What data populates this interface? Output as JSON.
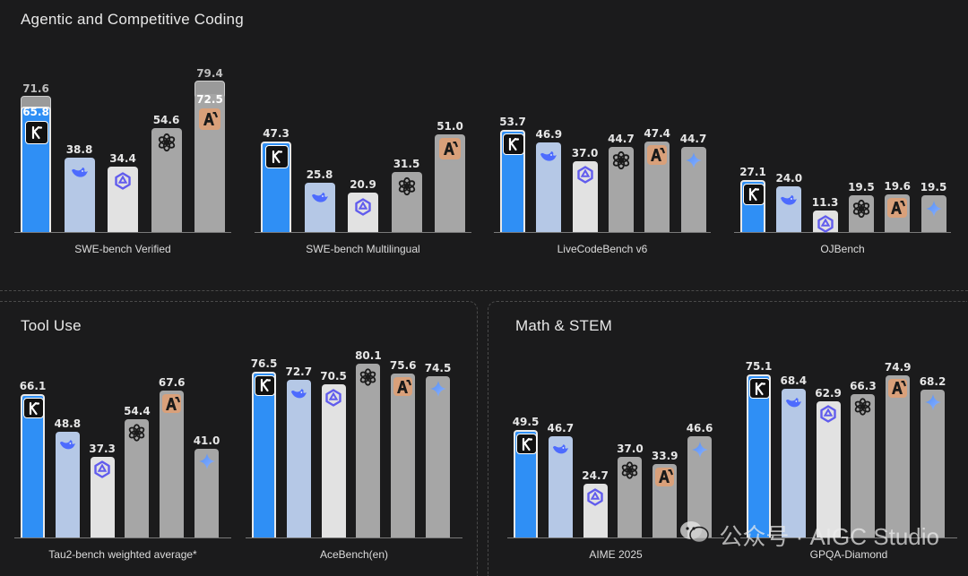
{
  "sections": {
    "coding": "Agentic and Competitive Coding",
    "tool": "Tool Use",
    "math": "Math & STEM"
  },
  "colors": {
    "kimi": "#2f8ff5",
    "deepseek": "#b5c8e6",
    "qwen": "#e2e2e2",
    "openai": "#a6a6a6",
    "claude": "#a6a6a6",
    "gemini": "#a6a6a6",
    "claude_badge": "#d9a07a",
    "extended": "#9a9a9a"
  },
  "watermark": {
    "text": "公众号 · AIGC Studio"
  },
  "chart_data": [
    {
      "type": "bar",
      "section": "coding",
      "title": "SWE-bench Verified",
      "ylim": [
        0,
        80
      ],
      "models": [
        "kimi",
        "deepseek",
        "qwen",
        "openai",
        "claude"
      ],
      "values": [
        65.8,
        38.8,
        34.4,
        54.6,
        72.5
      ],
      "labels": [
        "65.8",
        "38.8",
        "34.4",
        "54.6",
        "72.5"
      ],
      "extended": [
        71.6,
        null,
        null,
        null,
        79.4
      ],
      "extended_labels": [
        "71.6",
        null,
        null,
        null,
        "79.4"
      ]
    },
    {
      "type": "bar",
      "section": "coding",
      "title": "SWE-bench Multilingual",
      "ylim": [
        0,
        80
      ],
      "models": [
        "kimi",
        "deepseek",
        "qwen",
        "openai",
        "claude"
      ],
      "values": [
        47.3,
        25.8,
        20.9,
        31.5,
        51.0
      ],
      "labels": [
        "47.3",
        "25.8",
        "20.9",
        "31.5",
        "51.0"
      ]
    },
    {
      "type": "bar",
      "section": "coding",
      "title": "LiveCodeBench v6",
      "ylim": [
        0,
        80
      ],
      "models": [
        "kimi",
        "deepseek",
        "qwen",
        "openai",
        "claude",
        "gemini"
      ],
      "values": [
        53.7,
        46.9,
        37.0,
        44.7,
        47.4,
        44.7
      ],
      "labels": [
        "53.7",
        "46.9",
        "37.0",
        "44.7",
        "47.4",
        "44.7"
      ]
    },
    {
      "type": "bar",
      "section": "coding",
      "title": "OJBench",
      "ylim": [
        0,
        80
      ],
      "models": [
        "kimi",
        "deepseek",
        "qwen",
        "openai",
        "claude",
        "gemini"
      ],
      "values": [
        27.1,
        24.0,
        11.3,
        19.5,
        19.6,
        19.5
      ],
      "labels": [
        "27.1",
        "24.0",
        "11.3",
        "19.5",
        "19.6",
        "19.5"
      ]
    },
    {
      "type": "bar",
      "section": "tool",
      "title": "Tau2-bench weighted average*",
      "ylim": [
        0,
        80
      ],
      "models": [
        "kimi",
        "deepseek",
        "qwen",
        "openai",
        "claude",
        "gemini"
      ],
      "values": [
        66.1,
        48.8,
        37.3,
        54.4,
        67.6,
        41.0
      ],
      "labels": [
        "66.1",
        "48.8",
        "37.3",
        "54.4",
        "67.6",
        "41.0"
      ]
    },
    {
      "type": "bar",
      "section": "tool",
      "title": "AceBench(en)",
      "ylim": [
        0,
        80
      ],
      "models": [
        "kimi",
        "deepseek",
        "qwen",
        "openai",
        "claude",
        "gemini"
      ],
      "values": [
        76.5,
        72.7,
        70.5,
        80.1,
        75.6,
        74.5
      ],
      "labels": [
        "76.5",
        "72.7",
        "70.5",
        "80.1",
        "75.6",
        "74.5"
      ]
    },
    {
      "type": "bar",
      "section": "math",
      "title": "AIME 2025",
      "ylim": [
        0,
        80
      ],
      "models": [
        "kimi",
        "deepseek",
        "qwen",
        "openai",
        "claude",
        "gemini"
      ],
      "values": [
        49.5,
        46.7,
        24.7,
        37.0,
        33.9,
        46.6
      ],
      "labels": [
        "49.5",
        "46.7",
        "24.7",
        "37.0",
        "33.9",
        "46.6"
      ]
    },
    {
      "type": "bar",
      "section": "math",
      "title": "GPQA-Diamond",
      "ylim": [
        0,
        80
      ],
      "models": [
        "kimi",
        "deepseek",
        "qwen",
        "openai",
        "claude",
        "gemini"
      ],
      "values": [
        75.1,
        68.4,
        62.9,
        66.3,
        74.9,
        68.2
      ],
      "labels": [
        "75.1",
        "68.4",
        "62.9",
        "66.3",
        "74.9",
        "68.2"
      ]
    }
  ]
}
